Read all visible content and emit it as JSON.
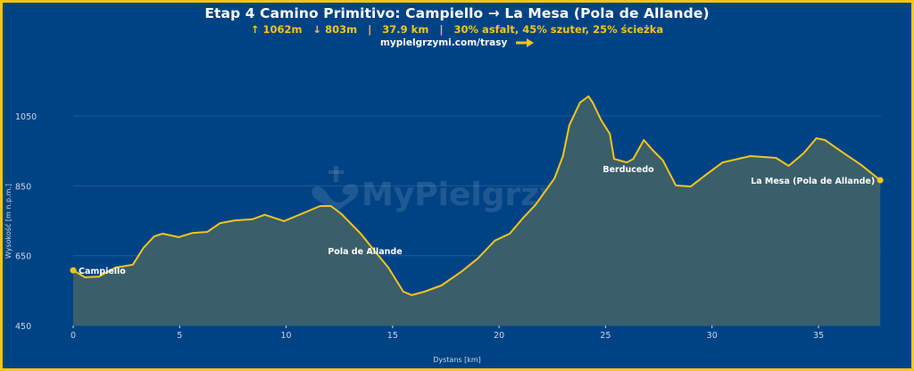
{
  "header": {
    "title": "Etap 4 Camino Primitivo: Campiello → La Mesa (Pola de Allande)",
    "stats": "↑ 1062m   ↓ 803m   |   37.9 km   |   30% asfalt, 45% szuter, 25% ścieżka",
    "link": "mypielgrzymi.com/trasy"
  },
  "colors": {
    "background": "#004385",
    "border": "#f5c518",
    "line": "#f5c518",
    "fill": "#3a5f6a",
    "grid": "#1e5a99",
    "text": "#ffffff",
    "accent": "#f5c518"
  },
  "watermark": "MyPielgrzymi",
  "chart_data": {
    "type": "area",
    "title": "Etap 4 Camino Primitivo: Campiello → La Mesa (Pola de Allande)",
    "xlabel": "Dystans [km]",
    "ylabel": "Wysokość [m n.p.m.]",
    "xlim": [
      0,
      37.9
    ],
    "ylim": [
      450,
      1140
    ],
    "xticks": [
      0,
      5,
      10,
      15,
      20,
      25,
      30,
      35
    ],
    "yticks": [
      450,
      650,
      850,
      1050
    ],
    "grid": "horizontal",
    "x": [
      0,
      0.55,
      1.2,
      2.0,
      2.8,
      3.3,
      3.8,
      4.2,
      4.95,
      5.6,
      6.3,
      6.9,
      7.6,
      8.4,
      9.0,
      9.9,
      10.7,
      11.6,
      12.1,
      12.6,
      13.5,
      14.2,
      14.8,
      15.5,
      15.9,
      16.5,
      17.3,
      18.2,
      19.0,
      19.8,
      20.5,
      21.1,
      21.7,
      22.6,
      23.0,
      23.3,
      23.8,
      24.2,
      24.4,
      24.8,
      25.2,
      25.4,
      26.0,
      26.3,
      26.8,
      27.2,
      27.7,
      28.3,
      29.0,
      29.7,
      30.5,
      31.8,
      33.0,
      33.6,
      34.3,
      34.9,
      35.3,
      36.2,
      37.0,
      37.9
    ],
    "series": [
      {
        "name": "Wysokość",
        "values": [
          608,
          588,
          590,
          616,
          624,
          672,
          705,
          713,
          703,
          715,
          718,
          743,
          751,
          754,
          767,
          749,
          769,
          792,
          792,
          769,
          713,
          660,
          616,
          547,
          537,
          547,
          565,
          603,
          642,
          693,
          713,
          756,
          795,
          871,
          935,
          1024,
          1088,
          1106,
          1088,
          1037,
          999,
          927,
          917,
          927,
          981,
          953,
          922,
          851,
          848,
          881,
          917,
          935,
          930,
          907,
          943,
          986,
          981,
          943,
          910,
          866
        ]
      }
    ],
    "annotations": [
      {
        "label": "Campiello",
        "x": 0,
        "y": 608,
        "marker": true
      },
      {
        "label": "Pola de Allande",
        "x": 13.8,
        "y": 700,
        "marker": false
      },
      {
        "label": "Berducedo",
        "x": 25.0,
        "y": 910,
        "marker": false
      },
      {
        "label": "La Mesa (Pola de Allande)",
        "x": 37.9,
        "y": 866,
        "marker": true
      }
    ]
  }
}
